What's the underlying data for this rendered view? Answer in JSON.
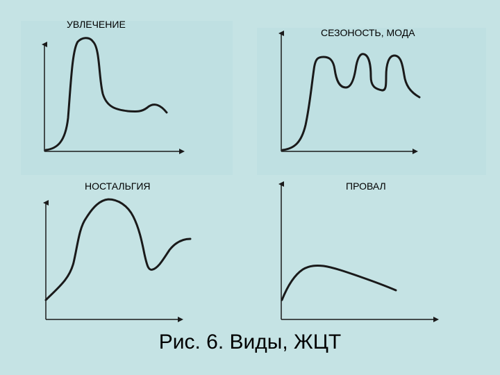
{
  "panels": [
    {
      "title": "УВЛЕЧЕНИЕ"
    },
    {
      "title": "СЕЗОНОСТЬ, МОДА"
    },
    {
      "title": "НОСТАЛЬГИЯ"
    },
    {
      "title": "ПРОВАЛ"
    }
  ],
  "caption": "Рис. 6. Виды, ЖЦТ",
  "colors": {
    "background": "#c5e3e4",
    "line": "#1a1a1a"
  }
}
